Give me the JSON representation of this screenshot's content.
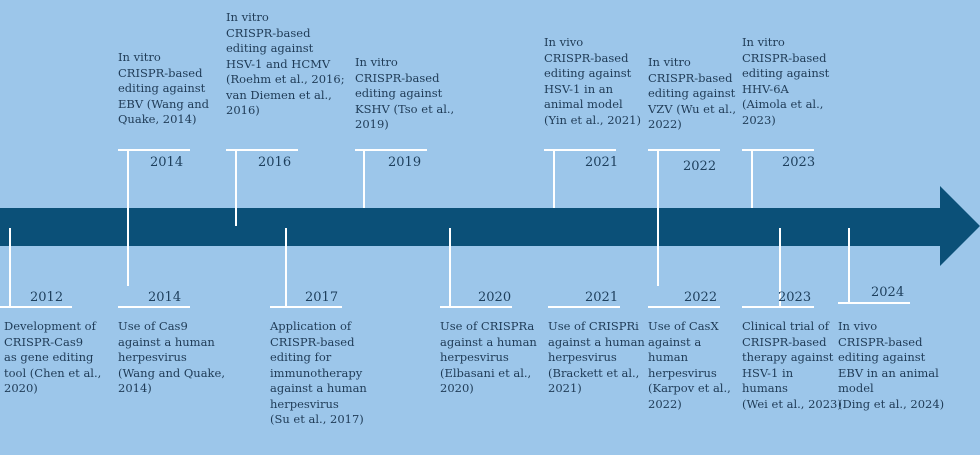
{
  "colors": {
    "background": "#9cc6ea",
    "arrow": "#0b5078",
    "lines": "#ffffff",
    "text": "#1f3b56"
  },
  "top_events": [
    {
      "year": "2014",
      "text": "In vitro\nCRISPR-based\nediting against\nEBV (Wang and\nQuake, 2014)"
    },
    {
      "year": "2016",
      "text": "In vitro\nCRISPR-based\nediting against\nHSV-1 and HCMV\n(Roehm et al., 2016;\nvan Diemen et al.,\n2016)"
    },
    {
      "year": "2019",
      "text": "In vitro\nCRISPR-based\nediting against\nKSHV (Tso et al.,\n2019)"
    },
    {
      "year": "2021",
      "text": "In vivo\nCRISPR-based\nediting against\nHSV-1 in an\nanimal model\n(Yin et al., 2021)"
    },
    {
      "year": "2022",
      "text": "In vitro\nCRISPR-based\nediting against\nVZV (Wu et al.,\n2022)"
    },
    {
      "year": "2023",
      "text": "In vitro\nCRISPR-based\nediting against\nHHV-6A\n(Aimola et al.,\n2023)"
    }
  ],
  "bottom_events": [
    {
      "year": "2012",
      "text": "Development of\nCRISPR-Cas9\nas gene editing\ntool (Chen et al.,\n2020)"
    },
    {
      "year": "2014",
      "text": "Use of Cas9\nagainst a human\nherpesvirus\n(Wang and Quake,\n2014)"
    },
    {
      "year": "2017",
      "text": "Application of\nCRISPR-based\nediting for\nimmunotherapy\nagainst a human\nherpesvirus\n(Su et al., 2017)"
    },
    {
      "year": "2020",
      "text": "Use of CRISPRa\nagainst a human\nherpesvirus\n(Elbasani et al.,\n2020)"
    },
    {
      "year": "2021",
      "text": "Use of CRISPRi\nagainst a human\nherpesvirus\n(Brackett et al.,\n2021)"
    },
    {
      "year": "2022",
      "text": "Use of CasX\nagainst a human\nherpesvirus\n(Karpov et al.,\n2022)"
    },
    {
      "year": "2023",
      "text": "Clinical trial of\nCRISPR-based\ntherapy against\nHSV-1 in\nhumans\n(Wei et al., 2023)"
    },
    {
      "year": "2024",
      "text": "In vivo\nCRISPR-based\nediting against\nEBV in an animal\nmodel\n(Ding et al., 2024)"
    }
  ]
}
